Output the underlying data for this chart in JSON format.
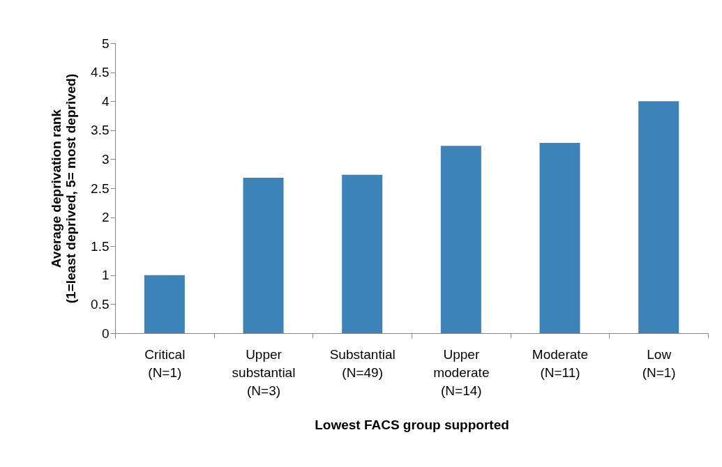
{
  "chart_data": {
    "type": "bar",
    "xlabel": "Lowest FACS group supported",
    "ylabel": "Average deprivation rank\n(1=least deprived, 5= most deprived)",
    "categories": [
      "Critical\n(N=1)",
      "Upper\nsubstantial\n(N=3)",
      "Substantial\n(N=49)",
      "Upper\nmoderate\n(N=14)",
      "Moderate\n(N=11)",
      "Low\n(N=1)"
    ],
    "values": [
      1.0,
      2.68,
      2.73,
      3.23,
      3.28,
      4.0
    ],
    "color": "#3b83b9",
    "ylim": [
      0,
      5
    ],
    "yticks": [
      0,
      0.5,
      1,
      1.5,
      2,
      2.5,
      3,
      3.5,
      4,
      4.5,
      5
    ],
    "grid": false
  }
}
